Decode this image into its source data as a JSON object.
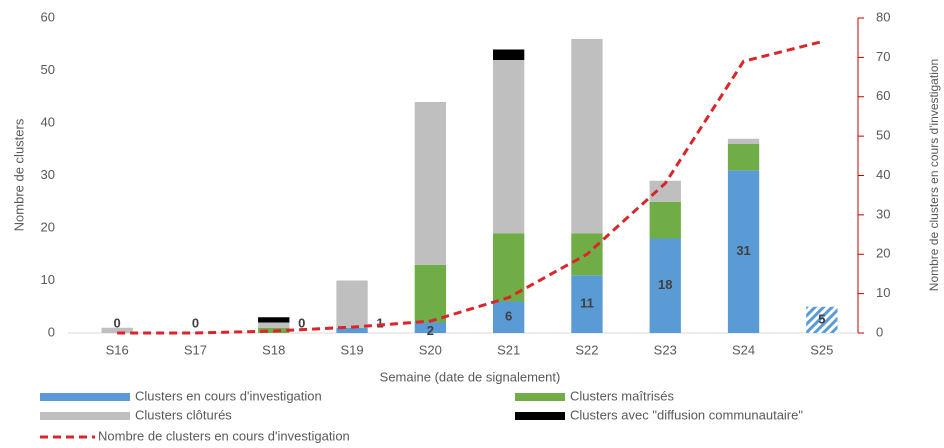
{
  "chart_data": {
    "type": "bar",
    "x_label": "Semaine (date de signalement)",
    "y_label": "Nombre de clusters",
    "y2_label": "Nombre de clusters en cours d'investigation",
    "categories": [
      "S16",
      "S17",
      "S18",
      "S19",
      "S20",
      "S21",
      "S22",
      "S23",
      "S24",
      "S25"
    ],
    "stacked": true,
    "series": [
      {
        "name": "Clusters en cours d'investigation",
        "color": "#5b9bd5",
        "values": [
          0,
          0,
          0,
          1,
          2,
          6,
          11,
          18,
          31,
          5
        ],
        "show_value_labels": true,
        "hatched": [
          false,
          false,
          false,
          false,
          false,
          false,
          false,
          false,
          false,
          true
        ]
      },
      {
        "name": "Clusters maîtrisés",
        "color": "#70ad47",
        "values": [
          0,
          0,
          1,
          0,
          11,
          13,
          8,
          7,
          5,
          0
        ]
      },
      {
        "name": "Clusters clôturés",
        "color": "#bfbfbf",
        "values": [
          1,
          0,
          1,
          9,
          31,
          33,
          37,
          4,
          1,
          0
        ]
      },
      {
        "name": "Clusters avec \"diffusion communautaire\"",
        "color": "#000000",
        "values": [
          0,
          0,
          1,
          0,
          0,
          2,
          0,
          0,
          0,
          0
        ]
      },
      {
        "name": "Nombre de clusters en cours d'investigation",
        "type": "line",
        "axis": "y2",
        "color": "#d9262b",
        "dashed": true,
        "values": [
          0,
          0,
          0.5,
          1.5,
          3,
          9,
          20,
          38,
          69,
          74
        ]
      }
    ],
    "ylim": [
      0,
      60
    ],
    "yticks": [
      0,
      10,
      20,
      30,
      40,
      50,
      60
    ],
    "y2lim": [
      0,
      80
    ],
    "y2ticks": [
      0,
      10,
      20,
      30,
      40,
      50,
      60,
      70,
      80
    ]
  }
}
